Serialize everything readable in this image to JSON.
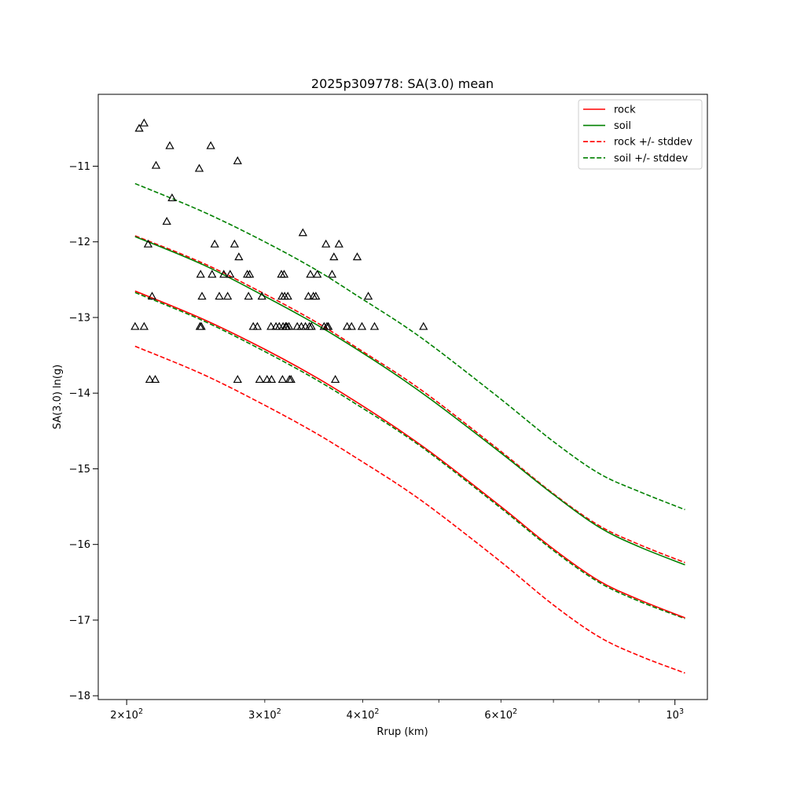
{
  "chart_data": {
    "type": "line",
    "title": "2025p309778: SA(3.0) mean",
    "xlabel": "Rrup (km)",
    "ylabel": "SA(3.0) ln(g)",
    "xscale": "log",
    "xlim": [
      184,
      1100
    ],
    "ylim": [
      -18.05,
      -10.05
    ],
    "x_major_ticks": [
      {
        "value": 200,
        "mantissa": "2",
        "exp": "2"
      },
      {
        "value": 1000,
        "mantissa": "",
        "exp": "3"
      }
    ],
    "x_minor_ticks": [
      {
        "value": 300,
        "mantissa": "3",
        "exp": "2"
      },
      {
        "value": 400,
        "mantissa": "4",
        "exp": "2"
      },
      {
        "value": 500
      },
      {
        "value": 600,
        "mantissa": "6",
        "exp": "2"
      },
      {
        "value": 700
      },
      {
        "value": 800
      },
      {
        "value": 900
      }
    ],
    "x_base": "10",
    "y_ticks": [
      -11,
      -12,
      -13,
      -14,
      -15,
      -16,
      -17,
      -18
    ],
    "y_tick_labels": [
      "−11",
      "−12",
      "−13",
      "−14",
      "−15",
      "−16",
      "−17",
      "−18"
    ],
    "grid": false,
    "legend_position": "top-right",
    "curve_x": [
      205,
      250,
      300,
      350,
      400,
      450,
      500,
      600,
      700,
      800,
      900,
      1030
    ],
    "series": [
      {
        "name": "rock",
        "color": "#ff0000",
        "style": "solid",
        "values": [
          -12.65,
          -13.02,
          -13.42,
          -13.8,
          -14.17,
          -14.52,
          -14.86,
          -15.5,
          -16.06,
          -16.48,
          -16.73,
          -16.97
        ]
      },
      {
        "name": "soil",
        "color": "#008000",
        "style": "solid",
        "values": [
          -11.93,
          -12.3,
          -12.72,
          -13.1,
          -13.47,
          -13.82,
          -14.16,
          -14.79,
          -15.34,
          -15.77,
          -16.03,
          -16.27
        ]
      },
      {
        "name": "rock +/- stddev",
        "color": "#ff0000",
        "style": "dashed",
        "values": [
          -11.92,
          -12.28,
          -12.69,
          -13.07,
          -13.45,
          -13.79,
          -14.13,
          -14.77,
          -15.33,
          -15.75,
          -16.0,
          -16.24
        ],
        "lower": [
          -13.38,
          -13.75,
          -14.16,
          -14.54,
          -14.91,
          -15.25,
          -15.59,
          -16.23,
          -16.8,
          -17.22,
          -17.47,
          -17.7
        ]
      },
      {
        "name": "soil +/- stddev",
        "color": "#008000",
        "style": "dashed",
        "values": [
          -11.23,
          -11.6,
          -12.0,
          -12.38,
          -12.76,
          -13.1,
          -13.44,
          -14.08,
          -14.64,
          -15.06,
          -15.3,
          -15.54
        ],
        "lower": [
          -12.67,
          -13.04,
          -13.45,
          -13.83,
          -14.2,
          -14.54,
          -14.88,
          -15.52,
          -16.08,
          -16.5,
          -16.75,
          -16.98
        ]
      }
    ],
    "observations": {
      "marker": "triangle",
      "color": "#000000",
      "points": [
        [
          207.5,
          -10.5
        ],
        [
          210.5,
          -10.43
        ],
        [
          205,
          -13.12
        ],
        [
          210.5,
          -13.12
        ],
        [
          213,
          -12.03
        ],
        [
          214,
          -13.82
        ],
        [
          215.5,
          -12.72
        ],
        [
          217.5,
          -13.82
        ],
        [
          218,
          -10.99
        ],
        [
          225,
          -11.73
        ],
        [
          227,
          -10.73
        ],
        [
          228.5,
          -11.42
        ],
        [
          247.5,
          -11.03
        ],
        [
          248,
          -13.12
        ],
        [
          248.5,
          -12.43
        ],
        [
          249,
          -13.12
        ],
        [
          249.5,
          -12.72
        ],
        [
          256,
          -10.73
        ],
        [
          257,
          -12.43
        ],
        [
          259,
          -12.03
        ],
        [
          262.5,
          -12.72
        ],
        [
          266,
          -12.43
        ],
        [
          269,
          -12.72
        ],
        [
          271,
          -12.43
        ],
        [
          274.5,
          -12.03
        ],
        [
          277,
          -10.93
        ],
        [
          277,
          -13.82
        ],
        [
          278,
          -12.2
        ],
        [
          285,
          -12.43
        ],
        [
          286,
          -12.72
        ],
        [
          287,
          -12.43
        ],
        [
          290,
          -13.12
        ],
        [
          293.5,
          -13.12
        ],
        [
          295.5,
          -13.82
        ],
        [
          297.5,
          -12.72
        ],
        [
          302,
          -13.82
        ],
        [
          305.5,
          -13.12
        ],
        [
          306,
          -13.82
        ],
        [
          310,
          -13.12
        ],
        [
          313,
          -13.12
        ],
        [
          315,
          -12.43
        ],
        [
          315.5,
          -12.72
        ],
        [
          316,
          -13.82
        ],
        [
          316.5,
          -13.12
        ],
        [
          317.5,
          -12.43
        ],
        [
          318,
          -12.72
        ],
        [
          319,
          -13.12
        ],
        [
          320,
          -13.12
        ],
        [
          321,
          -12.72
        ],
        [
          322,
          -13.12
        ],
        [
          322.5,
          -13.82
        ],
        [
          324,
          -13.82
        ],
        [
          330,
          -13.12
        ],
        [
          334,
          -13.12
        ],
        [
          335.5,
          -11.88
        ],
        [
          338,
          -13.12
        ],
        [
          341,
          -12.72
        ],
        [
          342,
          -13.12
        ],
        [
          343,
          -12.43
        ],
        [
          344,
          -13.12
        ],
        [
          346,
          -12.72
        ],
        [
          348.5,
          -12.72
        ],
        [
          350,
          -12.43
        ],
        [
          357,
          -13.12
        ],
        [
          359,
          -12.03
        ],
        [
          360,
          -13.12
        ],
        [
          361.5,
          -13.12
        ],
        [
          365.5,
          -12.43
        ],
        [
          367.5,
          -12.2
        ],
        [
          369,
          -13.82
        ],
        [
          373,
          -12.03
        ],
        [
          382,
          -13.12
        ],
        [
          387,
          -13.12
        ],
        [
          393.5,
          -12.2
        ],
        [
          399,
          -13.12
        ],
        [
          406.5,
          -12.72
        ],
        [
          414,
          -13.12
        ],
        [
          478,
          -13.12
        ]
      ]
    }
  }
}
